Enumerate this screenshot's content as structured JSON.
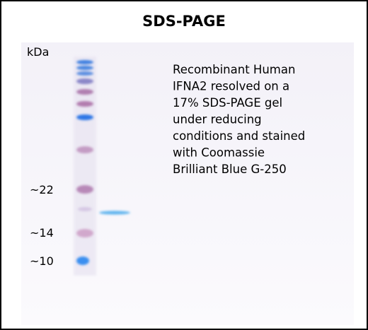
{
  "figure": {
    "title": "SDS-PAGE",
    "unit_label": "kDa",
    "markers": [
      "~22",
      "~14",
      "~10"
    ],
    "description_lines": [
      "Recombinant Human",
      "IFNA2 resolved on a",
      "17% SDS-PAGE gel",
      "under reducing",
      "conditions and stained",
      "with Coomassie",
      "Brilliant Blue G-250"
    ]
  }
}
